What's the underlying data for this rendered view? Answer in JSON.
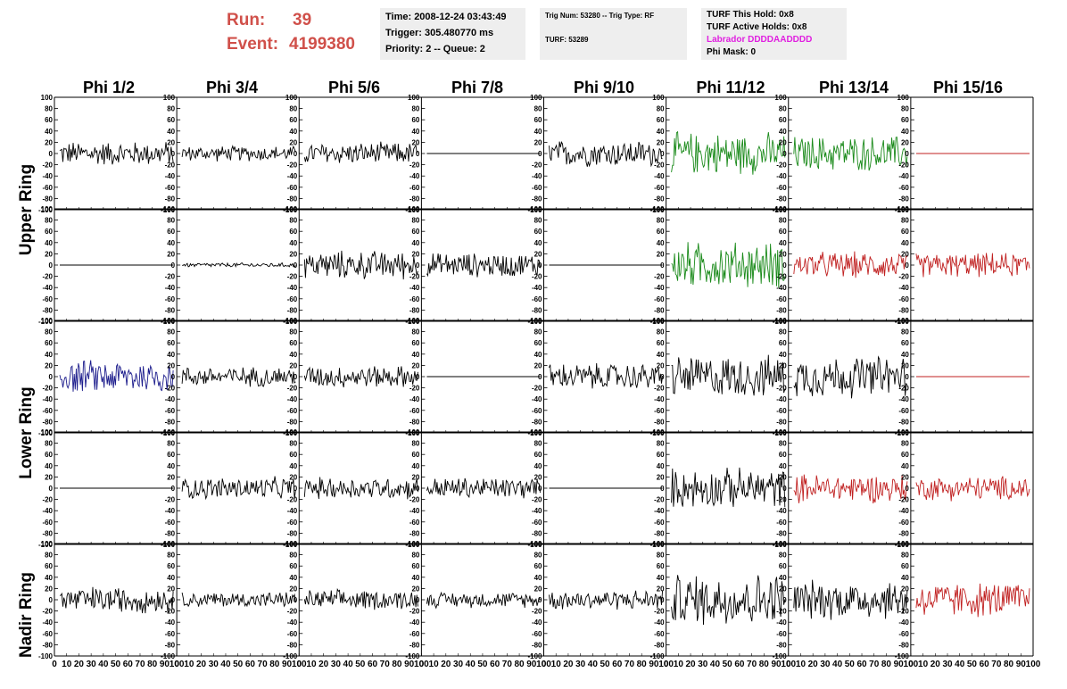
{
  "header": {
    "run_label": "Run:",
    "run_value": "39",
    "event_label": "Event:",
    "event_value": "4199380",
    "time_line": "Time: 2008-12-24 03:43:49",
    "trigger_line": "Trigger: 305.480770 ms",
    "priority_line": "Priority: 2 -- Queue: 2",
    "trig_line": "Trig Num: 53280 -- Trig Type: RF",
    "turf_line": "TURF: 53289",
    "turf_hold_line": "TURF This Hold: 0x8",
    "turf_active_line": "TURF Active Holds: 0x8",
    "labrador_line": "Labrador DDDDAADDDD",
    "phi_mask_line": "Phi Mask: 0"
  },
  "columns": [
    "Phi 1/2",
    "Phi 3/4",
    "Phi 5/6",
    "Phi 7/8",
    "Phi 9/10",
    "Phi 11/12",
    "Phi 13/14",
    "Phi 15/16"
  ],
  "ring_labels": [
    "Upper Ring",
    "Lower Ring",
    "Nadir Ring"
  ],
  "y_ticks": [
    "100",
    "80",
    "60",
    "40",
    "20",
    "0",
    "-20",
    "-40",
    "-60",
    "-80",
    "-100"
  ],
  "x_ticks": [
    "0",
    "10",
    "20",
    "30",
    "40",
    "50",
    "60",
    "70",
    "80",
    "90",
    "100"
  ],
  "colors": {
    "black": "#000000",
    "green": "#1a8a1a",
    "red": "#c02020",
    "blue": "#1c1c8c",
    "run_text": "#d0504a",
    "labrador": "#e020e0"
  },
  "chart_data": {
    "type": "line",
    "xlim": [
      0,
      100
    ],
    "ylim": [
      -100,
      100
    ],
    "rows": [
      {
        "name": "Upper Ring (top)",
        "cells": [
          {
            "color": "black",
            "amp": 22
          },
          {
            "color": "black",
            "amp": 14
          },
          {
            "color": "black",
            "amp": 20
          },
          {
            "color": "black",
            "amp": 0
          },
          {
            "color": "black",
            "amp": 24
          },
          {
            "color": "green",
            "amp": 38
          },
          {
            "color": "green",
            "amp": 32
          },
          {
            "color": "red",
            "amp": 0
          }
        ]
      },
      {
        "name": "Upper Ring (bottom)",
        "cells": [
          {
            "color": "black",
            "amp": 0
          },
          {
            "color": "black",
            "amp": 4
          },
          {
            "color": "black",
            "amp": 26
          },
          {
            "color": "black",
            "amp": 22
          },
          {
            "color": "black",
            "amp": 0
          },
          {
            "color": "green",
            "amp": 42
          },
          {
            "color": "red",
            "amp": 24
          },
          {
            "color": "red",
            "amp": 22
          }
        ]
      },
      {
        "name": "Lower Ring (top)",
        "cells": [
          {
            "color": "blue",
            "amp": 30
          },
          {
            "color": "black",
            "amp": 18
          },
          {
            "color": "black",
            "amp": 20
          },
          {
            "color": "black",
            "amp": 0
          },
          {
            "color": "black",
            "amp": 24
          },
          {
            "color": "black",
            "amp": 38
          },
          {
            "color": "black",
            "amp": 38
          },
          {
            "color": "red",
            "amp": 0
          }
        ]
      },
      {
        "name": "Lower Ring (bottom)",
        "cells": [
          {
            "color": "black",
            "amp": 0
          },
          {
            "color": "black",
            "amp": 20
          },
          {
            "color": "black",
            "amp": 20
          },
          {
            "color": "black",
            "amp": 20
          },
          {
            "color": "black",
            "amp": 0
          },
          {
            "color": "black",
            "amp": 36
          },
          {
            "color": "red",
            "amp": 26
          },
          {
            "color": "red",
            "amp": 22
          }
        ]
      },
      {
        "name": "Nadir Ring",
        "cells": [
          {
            "color": "black",
            "amp": 24
          },
          {
            "color": "black",
            "amp": 14
          },
          {
            "color": "black",
            "amp": 18
          },
          {
            "color": "black",
            "amp": 14
          },
          {
            "color": "black",
            "amp": 18
          },
          {
            "color": "black",
            "amp": 48
          },
          {
            "color": "black",
            "amp": 36
          },
          {
            "color": "red",
            "amp": 32
          }
        ]
      }
    ]
  }
}
